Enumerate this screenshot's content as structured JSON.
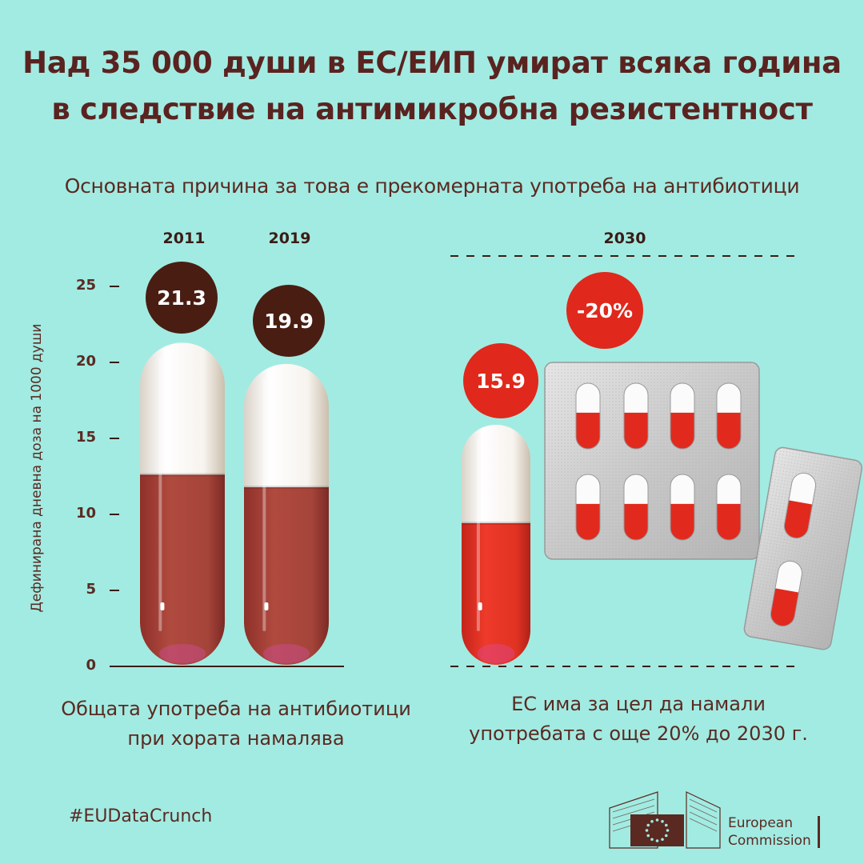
{
  "header": {
    "title_line1": "Над 35 000 души в ЕС/ЕИП умират всяка година",
    "title_line2": "в следствие на антимикробна резистентност",
    "subtitle": "Основната причина за това е прекомерната употреба на антибиотици"
  },
  "chart_data": {
    "type": "bar",
    "categories": [
      "2011",
      "2019",
      "2030"
    ],
    "values": [
      21.3,
      19.9,
      15.9
    ],
    "value_labels": [
      "21.3",
      "19.9",
      "15.9"
    ],
    "target_label": "-20%",
    "ylabel": "Дефинирана дневна доза на 1000 души",
    "ylim": [
      0,
      25
    ],
    "yticks": [
      "0",
      "5",
      "10",
      "15",
      "20",
      "25"
    ],
    "colors": {
      "historic": "#a8423a",
      "target": "#e23324",
      "historic_badge": "#4a1d12",
      "target_badge": "#e0281c"
    }
  },
  "captions": {
    "left": "Общата употреба на антибиотици\nпри хората намалява",
    "right": "ЕС има за цел да намали\nупотребата с още 20% до 2030 г."
  },
  "footer": {
    "hashtag": "#EUDataCrunch",
    "logo_line1": "European",
    "logo_line2": "Commission"
  }
}
